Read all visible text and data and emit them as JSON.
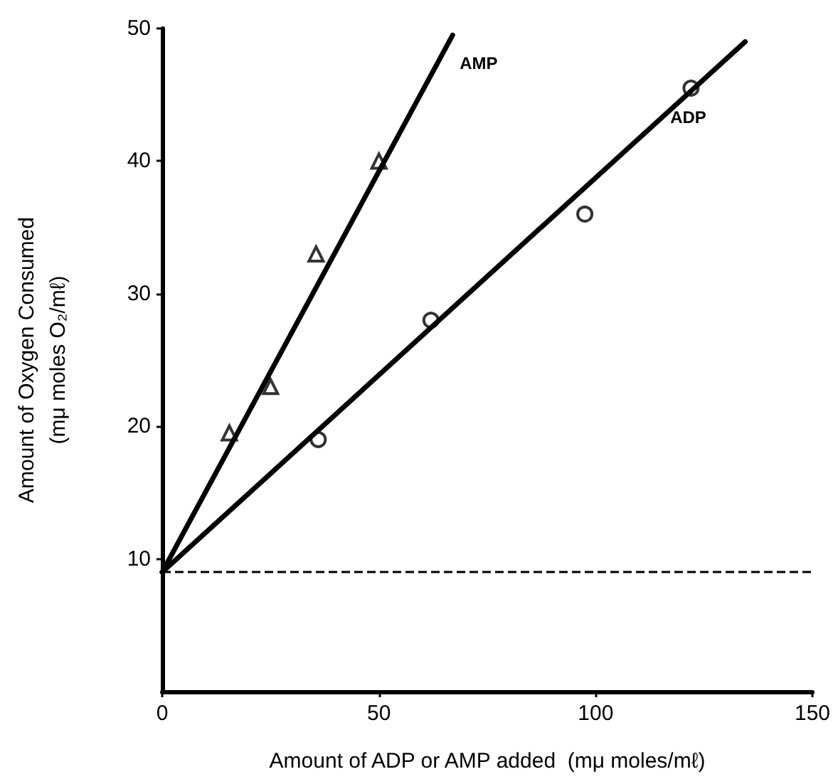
{
  "chart_data": {
    "type": "scatter",
    "xlabel": "Amount of ADP or AMP added  (mμ moles/mℓ)",
    "ylabel": "Amount of Oxygen Consumed\n(mμ moles O₂/mℓ)",
    "xlim": [
      0,
      150
    ],
    "xticks": [
      0,
      50,
      100,
      150
    ],
    "ylim": [
      0,
      50
    ],
    "yticks": [
      10,
      20,
      30,
      40,
      50
    ],
    "grid": false,
    "series": [
      {
        "marker": "triangle",
        "color": "#000000",
        "x": [
          15.5,
          25,
          35.5,
          50
        ],
        "values": [
          19.5,
          23,
          33,
          40
        ]
      },
      {
        "marker": "circle",
        "color": "#000000",
        "x": [
          36,
          62,
          97.5,
          122
        ],
        "values": [
          19,
          28,
          36,
          45.5
        ]
      },
      {
        "type": "line",
        "name": "AMP",
        "marker": "none",
        "color": "#000000",
        "x": [
          0,
          67
        ],
        "values": [
          9,
          49.5
        ]
      },
      {
        "type": "line",
        "name": "ADP",
        "marker": "none",
        "color": "#000000",
        "x": [
          0,
          134.5
        ],
        "values": [
          9,
          49
        ]
      }
    ],
    "ref_lines": [
      {
        "axis": "y",
        "value": 9,
        "color": "#000000",
        "line_style": "dashed"
      }
    ]
  }
}
